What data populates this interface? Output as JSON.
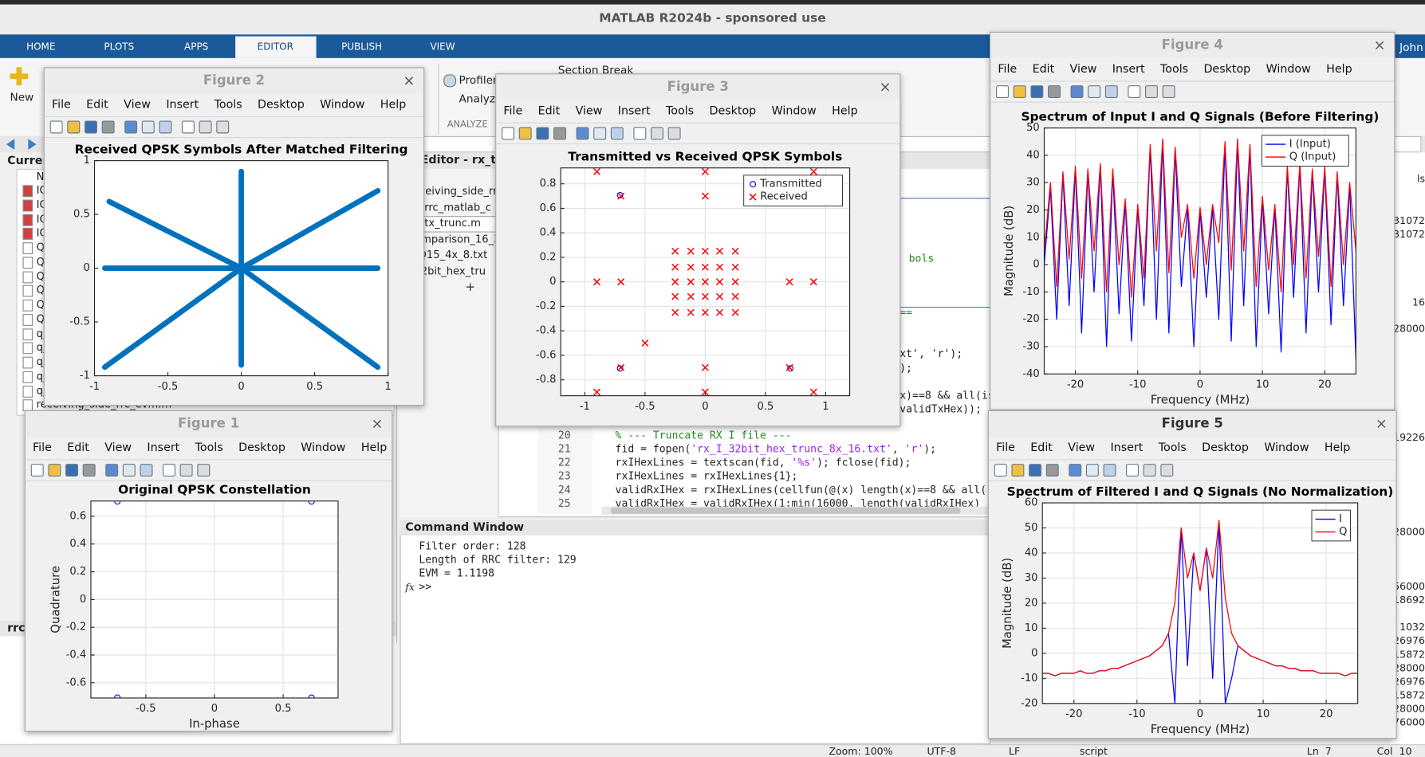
{
  "app": {
    "title": "MATLAB R2024b - sponsored use",
    "user": "John",
    "tabs": [
      "HOME",
      "PLOTS",
      "APPS",
      "EDITOR",
      "PUBLISH",
      "VIEW"
    ],
    "active_tab": 3,
    "toolstrip": {
      "new": "New",
      "profiler": "Profiler",
      "analyze": "Analyze",
      "section": "ANALYZE",
      "section_break": "Section Break"
    }
  },
  "current_folder": {
    "title": "Curren",
    "column": "N",
    "items": [
      "IQ",
      "IQ",
      "IQ",
      "IQ",
      "Q_",
      "Q",
      "Q",
      "Q",
      "Q",
      "Q",
      "q_",
      "q_",
      "q_",
      "q_",
      "q_",
      "receiving_side_rrc_evm.m"
    ],
    "footer": "rrc"
  },
  "editor": {
    "title": "Editor - rx_tx_t",
    "files": [
      "receiving_side_rrc",
      "rx_rrc_matlab_c",
      "rx_tx_trunc.m",
      "comparison_16_3",
      "t_Q15_4x_8.txt",
      "_32bit_hex_tru"
    ],
    "add": "+",
    "fragments": [
      "bols",
      "==",
      "xt', 'r');",
      ");",
      "x)==8 && all(is",
      "validTxHex));"
    ],
    "line_numbers": [
      20,
      21,
      22,
      23,
      24,
      25
    ],
    "code": [
      "% --- Truncate RX I file ---",
      "fid = fopen('rx_I_32bit_hex_trunc_8x_16.txt', 'r');",
      "rxIHexLines = textscan(fid, '%s'); fclose(fid);",
      "rxIHexLines = rxIHexLines{1};",
      "validRxIHex = rxIHexLines(cellfun(@(x) length(x)==8 && all(",
      "validRxIHex = validRxIHex(1:min(16000, length(validRxIHex)"
    ]
  },
  "command_window": {
    "title": "Command Window",
    "output": [
      "Filter order: 128",
      "Length of RRC filter: 129",
      "EVM = 1.1198"
    ],
    "prompt": ">>",
    "fx": "fx"
  },
  "status_bar": [
    "Zoom: 100%",
    "UTF-8",
    "LF",
    "script",
    "Ln  7",
    "Col  10"
  ],
  "workspace_fragments": [
    "ls",
    "31072",
    "31072",
    "16",
    "28000",
    "19226",
    "28000",
    "56000",
    "18692",
    "1032",
    "26976",
    "15872",
    "28000",
    "26976",
    "15872",
    "28000",
    "76000"
  ],
  "figure_menu": [
    "File",
    "Edit",
    "View",
    "Insert",
    "Tools",
    "Desktop",
    "Window",
    "Help"
  ],
  "figures": [
    {
      "title": "Figure 2",
      "plot": {
        "type": "line",
        "title": "Received QPSK Symbols After Matched Filtering",
        "xlim": [
          -1,
          1
        ],
        "ylim": [
          -1,
          1
        ],
        "xticks": [
          -1,
          -0.5,
          0,
          0.5,
          1
        ],
        "yticks": [
          -1,
          -0.5,
          0,
          0.5,
          1
        ],
        "grid": false,
        "series": [
          {
            "color": "#0072bd",
            "x": [
              -0.93,
              0.93,
              null,
              0,
              0,
              null,
              0,
              0.93,
              null,
              0,
              -0.93,
              null,
              0,
              0.93,
              null,
              0,
              -0.9
            ],
            "y": [
              0,
              0,
              null,
              -0.9,
              0.9,
              null,
              0,
              0.72,
              null,
              0,
              -0.92,
              null,
              0,
              -0.92,
              null,
              0,
              0.62
            ]
          }
        ]
      }
    },
    {
      "title": "Figure 3",
      "plot": {
        "type": "scatter",
        "title": "Transmitted vs Received QPSK Symbols",
        "xlim": [
          -1.2,
          1.2
        ],
        "ylim": [
          -0.93,
          0.93
        ],
        "xticks": [
          -1,
          -0.5,
          0,
          0.5,
          1
        ],
        "yticks": [
          -0.8,
          -0.6,
          -0.4,
          -0.2,
          0,
          0.2,
          0.4,
          0.6,
          0.8
        ],
        "grid": true,
        "legend": "northeast",
        "series": [
          {
            "name": "Transmitted",
            "color": "#0000ff",
            "marker": "o",
            "x": [
              -0.707,
              0.707,
              -0.707,
              0.707
            ],
            "y": [
              0.707,
              0.707,
              -0.707,
              -0.707
            ]
          },
          {
            "name": "Received",
            "color": "#ff0000",
            "marker": "x",
            "x": [
              -0.9,
              0,
              0.9,
              -0.7,
              0,
              0.7,
              -0.9,
              -0.7,
              0.7,
              0.9,
              -0.7,
              0,
              0.7,
              -0.9,
              0,
              0.9,
              -0.5,
              -0.25,
              -0.12,
              0,
              0.12,
              0.25,
              -0.25,
              -0.12,
              0,
              0.12,
              0.25,
              -0.25,
              -0.12,
              0,
              0.12,
              0.25,
              -0.25,
              -0.12,
              0,
              0.12,
              0.25,
              -0.25,
              -0.12,
              0,
              0.12,
              0.25
            ],
            "y": [
              0.9,
              0.9,
              0.9,
              0.7,
              0.7,
              0.7,
              0,
              0,
              0,
              0,
              -0.7,
              -0.7,
              -0.7,
              -0.9,
              -0.9,
              -0.9,
              -0.5,
              0.25,
              0.25,
              0.25,
              0.25,
              0.25,
              0.12,
              0.12,
              0.12,
              0.12,
              0.12,
              0,
              0,
              0,
              0,
              0,
              -0.12,
              -0.12,
              -0.12,
              -0.12,
              -0.12,
              -0.25,
              -0.25,
              -0.25,
              -0.25,
              -0.25
            ]
          }
        ]
      }
    },
    {
      "title": "Figure 1",
      "plot": {
        "type": "scatter",
        "title": "Original QPSK Constellation",
        "xlabel": "In-phase",
        "ylabel": "Quadrature",
        "xlim": [
          -0.9,
          0.9
        ],
        "ylim": [
          -0.71,
          0.71
        ],
        "xticks": [
          -0.5,
          0,
          0.5
        ],
        "yticks": [
          -0.6,
          -0.4,
          -0.2,
          0,
          0.2,
          0.4,
          0.6
        ],
        "grid": true,
        "series": [
          {
            "color": "#0000ff",
            "marker": "o",
            "x": [
              -0.707,
              0.707,
              -0.707,
              0.707
            ],
            "y": [
              0.707,
              0.707,
              -0.707,
              -0.707
            ]
          }
        ]
      }
    },
    {
      "title": "Figure 4",
      "plot": {
        "type": "line",
        "title": "Spectrum of Input I and Q Signals (Before Filtering)",
        "xlabel": "Frequency (MHz)",
        "ylabel": "Magnitude (dB)",
        "xlim": [
          -25,
          25
        ],
        "ylim": [
          -40,
          50
        ],
        "xticks": [
          -20,
          -10,
          0,
          10,
          20
        ],
        "yticks": [
          -40,
          -30,
          -20,
          -10,
          0,
          10,
          20,
          30,
          40,
          50
        ],
        "grid": true,
        "legend": "northeast",
        "x": [
          -25,
          -24,
          -23,
          -22,
          -21,
          -20,
          -19,
          -18,
          -17,
          -16,
          -15,
          -14,
          -13,
          -12,
          -11,
          -10,
          -9,
          -8,
          -7,
          -6,
          -5,
          -4,
          -3,
          -2,
          -1,
          0,
          1,
          2,
          3,
          4,
          5,
          6,
          7,
          8,
          9,
          10,
          11,
          12,
          13,
          14,
          15,
          16,
          17,
          18,
          19,
          20,
          21,
          22,
          23,
          24,
          25
        ],
        "series": [
          {
            "name": "I (Input)",
            "color": "#0000ff",
            "values": [
              0,
              28,
              -20,
              33,
              -15,
              35,
              -25,
              34,
              -10,
              36,
              -30,
              34,
              -18,
              23,
              -28,
              21,
              -15,
              43,
              -20,
              45,
              -25,
              42,
              -8,
              21,
              -30,
              20,
              -12,
              21,
              -20,
              44,
              -28,
              45,
              -15,
              43,
              -30,
              24,
              -18,
              21,
              -32,
              35,
              -12,
              36,
              -25,
              34,
              -10,
              35,
              -22,
              33,
              -15,
              29,
              -35
            ]
          },
          {
            "name": "Q (Input)",
            "color": "#ff0000",
            "values": [
              5,
              30,
              -8,
              34,
              2,
              36,
              -5,
              35,
              5,
              37,
              -10,
              35,
              0,
              24,
              -12,
              22,
              -5,
              44,
              5,
              46,
              -3,
              43,
              10,
              22,
              -5,
              21,
              0,
              22,
              8,
              45,
              -2,
              46,
              5,
              44,
              -8,
              25,
              -2,
              22,
              -10,
              36,
              0,
              37,
              -5,
              35,
              3,
              36,
              -8,
              34,
              0,
              30,
              5
            ]
          }
        ]
      }
    },
    {
      "title": "Figure 5",
      "plot": {
        "type": "line",
        "title": "Spectrum of Filtered I and Q Signals (No Normalization)",
        "xlabel": "Frequency (MHz)",
        "ylabel": "Magnitude (dB)",
        "xlim": [
          -25,
          25
        ],
        "ylim": [
          -20,
          60
        ],
        "xticks": [
          -20,
          -10,
          0,
          10,
          20
        ],
        "yticks": [
          -20,
          -10,
          0,
          10,
          20,
          30,
          40,
          50,
          60
        ],
        "grid": true,
        "legend": "northeast",
        "x": [
          -25,
          -24,
          -23,
          -22,
          -21,
          -20,
          -19,
          -18,
          -17,
          -16,
          -15,
          -14,
          -13,
          -12,
          -11,
          -10,
          -9,
          -8,
          -7,
          -6,
          -5,
          -4,
          -3,
          -2,
          -1,
          0,
          1,
          2,
          3,
          4,
          5,
          6,
          7,
          8,
          9,
          10,
          11,
          12,
          13,
          14,
          15,
          16,
          17,
          18,
          19,
          20,
          21,
          22,
          23,
          24,
          25
        ],
        "series": [
          {
            "name": "I",
            "color": "#0000ff",
            "values": [
              -8,
              -8,
              -9,
              -8,
              -8,
              -8,
              -7,
              -8,
              -8,
              -7,
              -7,
              -6,
              -6,
              -5,
              -4,
              -3,
              -2,
              -1,
              1,
              3,
              8,
              -20,
              50,
              -5,
              40,
              25,
              42,
              -10,
              53,
              -20,
              -10,
              3,
              1,
              -1,
              -2,
              -3,
              -4,
              -5,
              -5,
              -6,
              -6,
              -7,
              -7,
              -7,
              -8,
              -8,
              -8,
              -8,
              -9,
              -8,
              -8
            ]
          },
          {
            "name": "Q",
            "color": "#ff0000",
            "values": [
              -8,
              -8,
              -9,
              -8,
              -8,
              -8,
              -7,
              -8,
              -8,
              -7,
              -7,
              -6,
              -6,
              -5,
              -4,
              -3,
              -2,
              -1,
              1,
              3,
              8,
              20,
              50,
              30,
              40,
              25,
              42,
              30,
              53,
              22,
              8,
              3,
              1,
              -1,
              -2,
              -3,
              -4,
              -5,
              -5,
              -6,
              -6,
              -7,
              -7,
              -7,
              -8,
              -8,
              -8,
              -8,
              -9,
              -8,
              -8
            ]
          }
        ]
      }
    }
  ]
}
